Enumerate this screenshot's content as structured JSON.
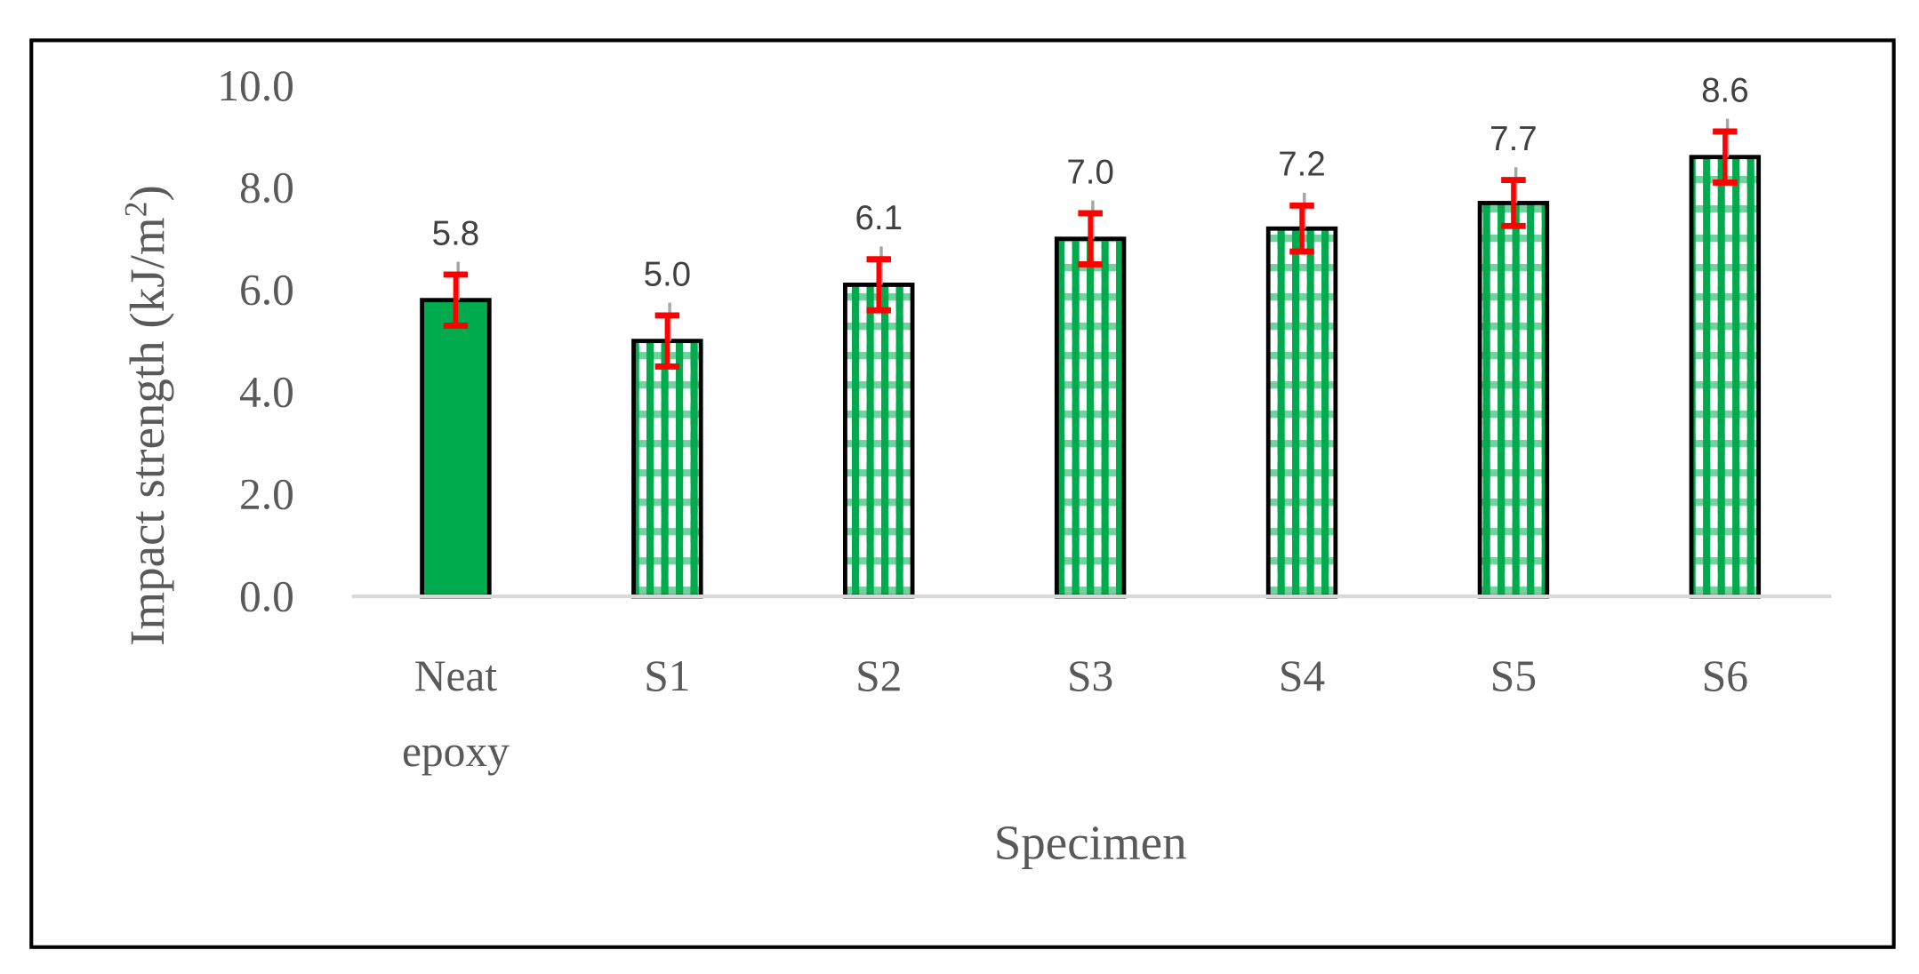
{
  "chart_data": {
    "type": "bar",
    "title": "",
    "xlabel": "Specimen",
    "ylabel": "Impact strength (kJ/m²)",
    "ylabel_parts": {
      "main": "Impact strength (kJ/m",
      "sup": "2",
      "end": ")"
    },
    "ylim": [
      0,
      10
    ],
    "yticks": [
      "0.0",
      "2.0",
      "4.0",
      "6.0",
      "8.0",
      "10.0"
    ],
    "categories": [
      [
        "Neat",
        "epoxy"
      ],
      [
        "S1"
      ],
      [
        "S2"
      ],
      [
        "S3"
      ],
      [
        "S4"
      ],
      [
        "S5"
      ],
      [
        "S6"
      ]
    ],
    "values": [
      5.8,
      5.0,
      6.1,
      7.0,
      7.2,
      7.7,
      8.6
    ],
    "data_labels": [
      "5.8",
      "5.0",
      "6.1",
      "7.0",
      "7.2",
      "7.7",
      "8.6"
    ],
    "error": [
      0.5,
      0.5,
      0.5,
      0.5,
      0.45,
      0.45,
      0.5
    ],
    "fill_styles": [
      "solid",
      "checkered",
      "checkered",
      "checkered",
      "checkered",
      "checkered",
      "checkered"
    ],
    "grid": false,
    "legend": "none",
    "colors": {
      "bar": "#00AB4E",
      "outline": "#000000",
      "error": "#FF0000",
      "error_secondary": "#A6A6A6",
      "axis": "#D9D9D9",
      "text": "#595959"
    }
  }
}
